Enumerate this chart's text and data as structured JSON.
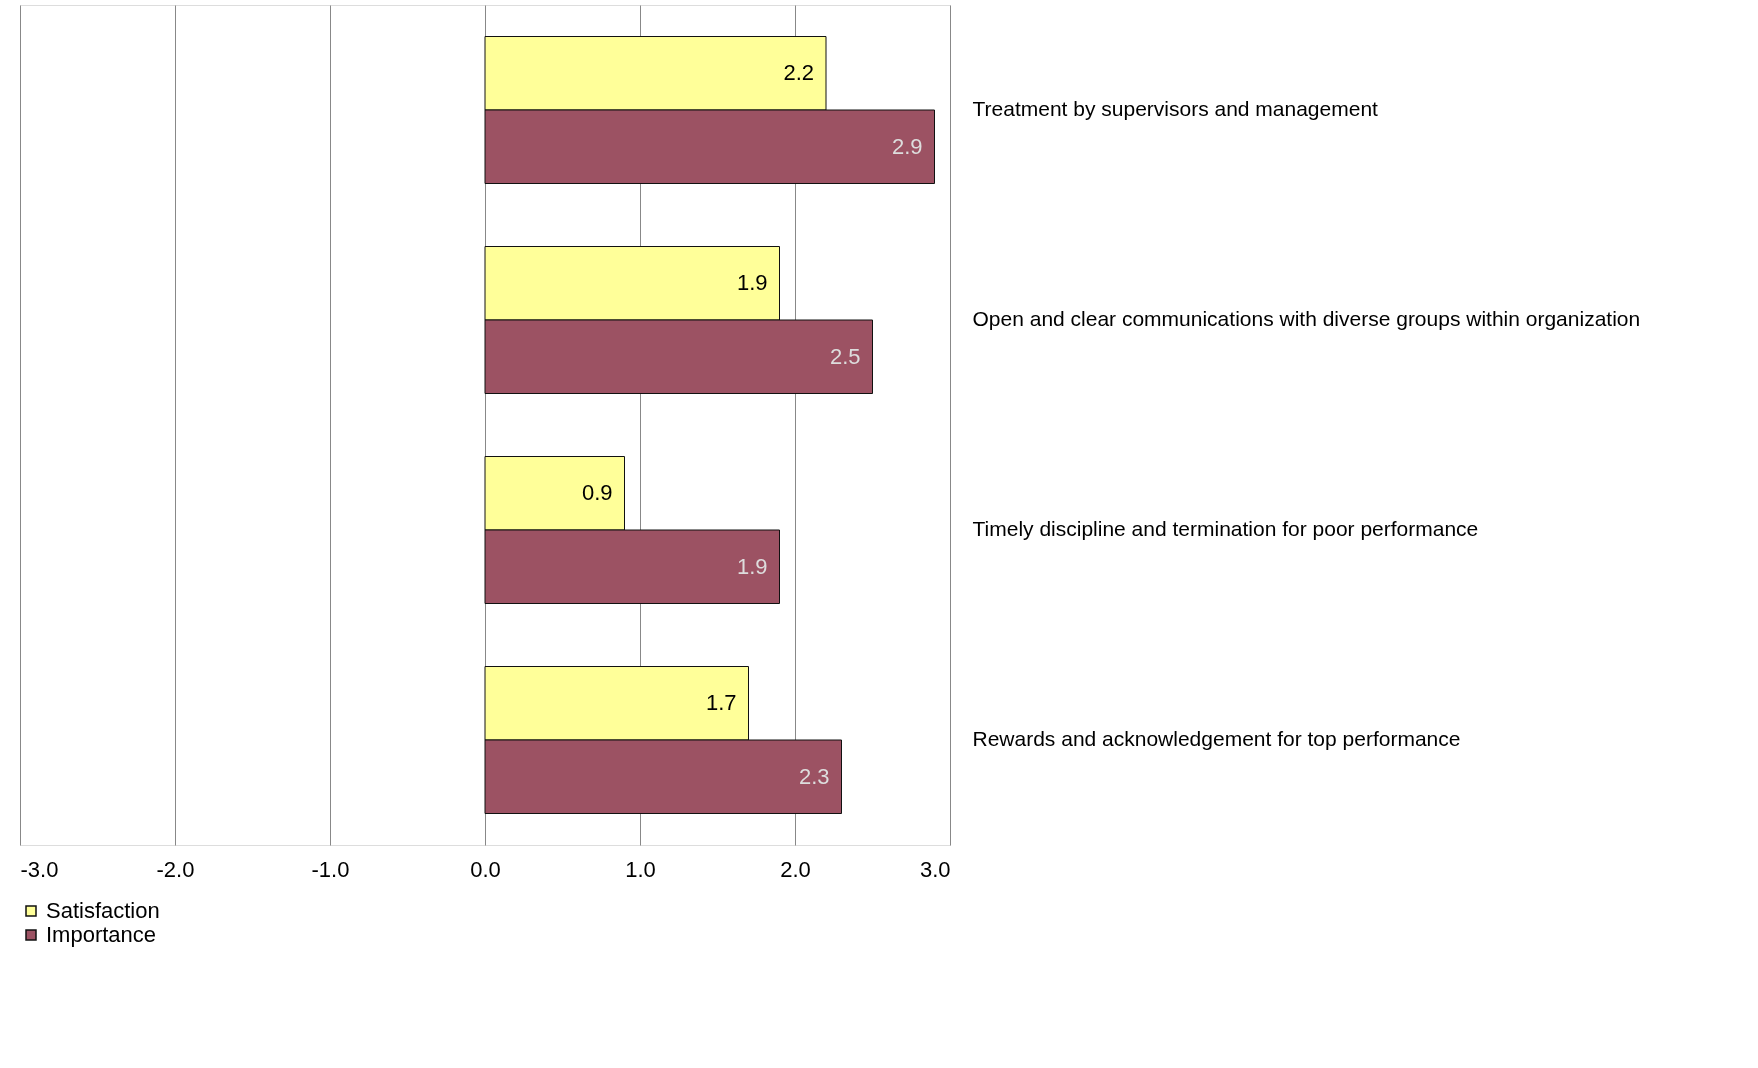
{
  "chart_data": {
    "type": "bar",
    "orientation": "horizontal",
    "categories": [
      "Treatment by supervisors and management",
      "Open and clear communications with diverse groups within organization",
      "Timely discipline and termination for poor performance",
      "Rewards and acknowledgement for top performance"
    ],
    "series": [
      {
        "name": "Satisfaction",
        "color": "#ffff99",
        "values": [
          2.2,
          1.9,
          0.9,
          1.7
        ]
      },
      {
        "name": "Importance",
        "color": "#9c5263",
        "values": [
          2.9,
          2.5,
          1.9,
          2.3
        ]
      }
    ],
    "xlim": [
      -3,
      3
    ],
    "xticks": [
      {
        "value": -3,
        "label": "-3.0"
      },
      {
        "value": -2,
        "label": "-2.0"
      },
      {
        "value": -1,
        "label": "-1.0"
      },
      {
        "value": 0,
        "label": "0.0"
      },
      {
        "value": 1,
        "label": "1.0"
      },
      {
        "value": 2,
        "label": "2.0"
      },
      {
        "value": 3,
        "label": "3.0"
      }
    ],
    "grid": "x",
    "legend": "bottom",
    "data_labels": true
  }
}
